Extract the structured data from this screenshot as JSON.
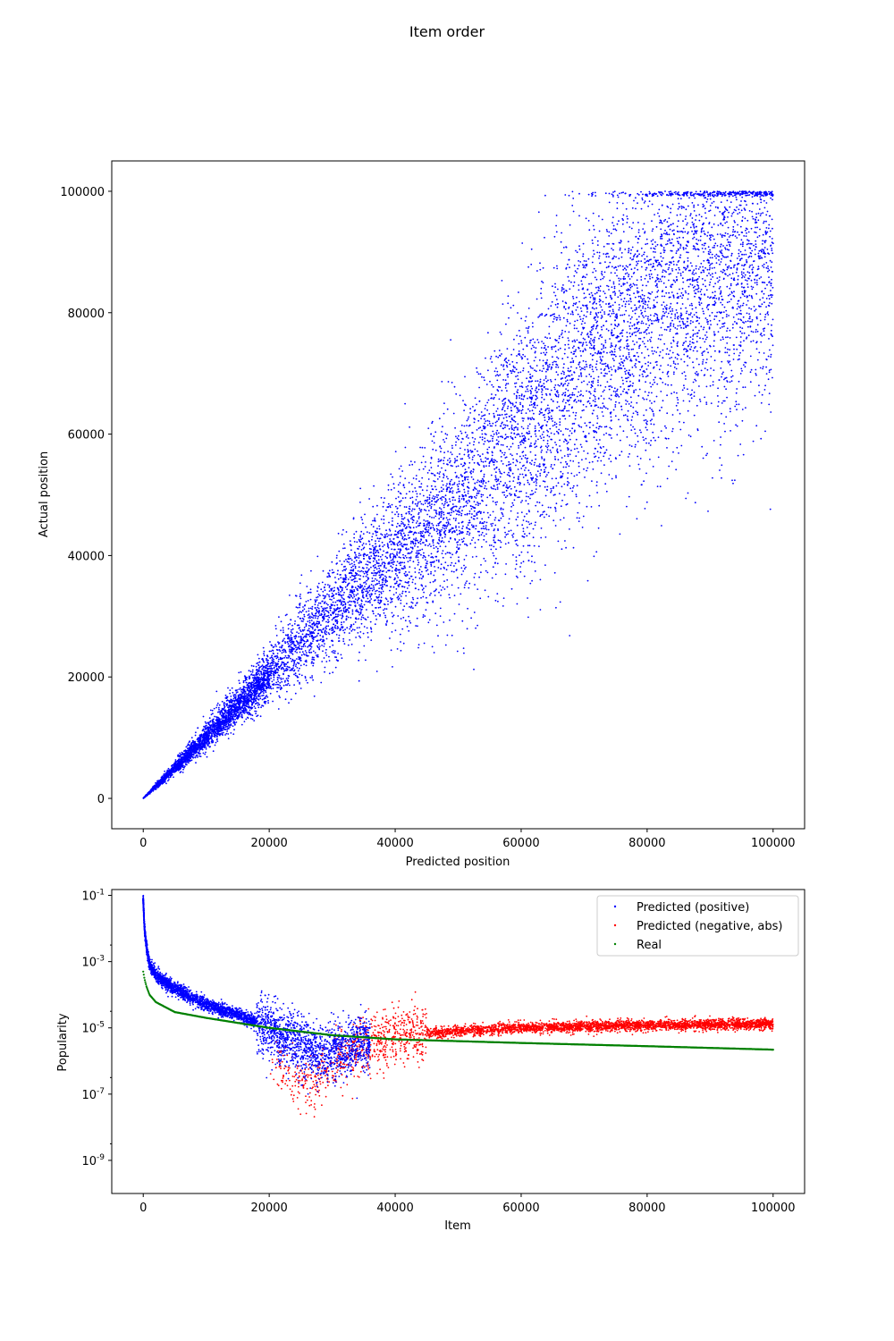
{
  "figure": {
    "title": "Item order"
  },
  "colors": {
    "predicted_positive": "#0000ff",
    "predicted_negative": "#ff0000",
    "real": "#008000"
  },
  "chart_data": [
    {
      "type": "scatter",
      "xlabel": "Predicted position",
      "ylabel": "Actual position",
      "xlim": [
        -5000,
        105000
      ],
      "ylim": [
        -5000,
        105000
      ],
      "xticks": [
        0,
        20000,
        40000,
        60000,
        80000,
        100000
      ],
      "xtick_labels": [
        "0",
        "20000",
        "40000",
        "60000",
        "80000",
        "100000"
      ],
      "yticks": [
        0,
        20000,
        40000,
        60000,
        80000,
        100000
      ],
      "ytick_labels": [
        "0",
        "20000",
        "40000",
        "60000",
        "80000",
        "100000"
      ],
      "grid": false,
      "series": [
        {
          "color": "#0000ff",
          "points": [
            [
              0,
              0
            ],
            [
              5000,
              5000
            ],
            [
              10000,
              10500
            ],
            [
              15000,
              15500
            ],
            [
              20000,
              20500
            ],
            [
              25000,
              26000
            ],
            [
              30000,
              31000
            ],
            [
              35000,
              36000
            ],
            [
              40000,
              40000
            ],
            [
              45000,
              44000
            ],
            [
              50000,
              48000
            ],
            [
              55000,
              55000
            ],
            [
              60000,
              60000
            ],
            [
              65000,
              66000
            ],
            [
              70000,
              72000
            ],
            [
              75000,
              77000
            ],
            [
              80000,
              80000
            ],
            [
              85000,
              84000
            ],
            [
              90000,
              86000
            ],
            [
              95000,
              88000
            ],
            [
              100000,
              90000
            ]
          ],
          "spread": [
            [
              0,
              0
            ],
            [
              10000,
              2000
            ],
            [
              20000,
              4000
            ],
            [
              30000,
              7000
            ],
            [
              40000,
              10000
            ],
            [
              50000,
              13000
            ],
            [
              60000,
              18000
            ],
            [
              70000,
              20000
            ],
            [
              80000,
              20000
            ],
            [
              90000,
              20000
            ],
            [
              100000,
              20000
            ]
          ],
          "max_value": 100000
        }
      ]
    },
    {
      "type": "scatter",
      "xlabel": "Item",
      "ylabel": "Popularity",
      "xlim": [
        -5000,
        105000
      ],
      "ylim": [
        1e-10,
        0.15
      ],
      "yscale": "log",
      "xticks": [
        0,
        20000,
        40000,
        60000,
        80000,
        100000
      ],
      "xtick_labels": [
        "0",
        "20000",
        "40000",
        "60000",
        "80000",
        "100000"
      ],
      "yticks": [
        1e-09,
        1e-07,
        1e-05,
        0.001,
        0.1
      ],
      "ytick_labels": [
        "10^-9",
        "10^-7",
        "10^-5",
        "10^-3",
        "10^-1"
      ],
      "grid": false,
      "legend": "top-right",
      "series": [
        {
          "name": "Predicted (positive)",
          "color": "#0000ff",
          "points": [
            [
              0,
              0.07
            ],
            [
              200,
              0.01
            ],
            [
              500,
              0.003
            ],
            [
              1000,
              0.0008
            ],
            [
              2000,
              0.0004
            ],
            [
              5000,
              0.00015
            ],
            [
              10000,
              5e-05
            ],
            [
              15000,
              2.5e-05
            ],
            [
              20000,
              1e-05
            ],
            [
              25000,
              3e-06
            ],
            [
              28000,
              1.5e-06
            ],
            [
              30000,
              2e-06
            ],
            [
              33000,
              3e-06
            ],
            [
              36000,
              4e-06
            ]
          ]
        },
        {
          "name": "Predicted (negative, abs)",
          "color": "#ff0000",
          "points": [
            [
              22000,
              5e-07
            ],
            [
              26000,
              2e-07
            ],
            [
              28000,
              3e-07
            ],
            [
              30000,
              8e-07
            ],
            [
              35000,
              3e-06
            ],
            [
              40000,
              6e-06
            ],
            [
              50000,
              8e-06
            ],
            [
              60000,
              1e-05
            ],
            [
              80000,
              1.2e-05
            ],
            [
              100000,
              1.3e-05
            ]
          ]
        },
        {
          "name": "Real",
          "color": "#008000",
          "points": [
            [
              0,
              0.0005
            ],
            [
              200,
              0.0003
            ],
            [
              500,
              0.00018
            ],
            [
              1000,
              0.0001
            ],
            [
              2000,
              6e-05
            ],
            [
              5000,
              3e-05
            ],
            [
              10000,
              2e-05
            ],
            [
              20000,
              1e-05
            ],
            [
              30000,
              6e-06
            ],
            [
              40000,
              4.5e-06
            ],
            [
              60000,
              3.5e-06
            ],
            [
              80000,
              2.8e-06
            ],
            [
              100000,
              2.2e-06
            ]
          ]
        }
      ]
    }
  ]
}
